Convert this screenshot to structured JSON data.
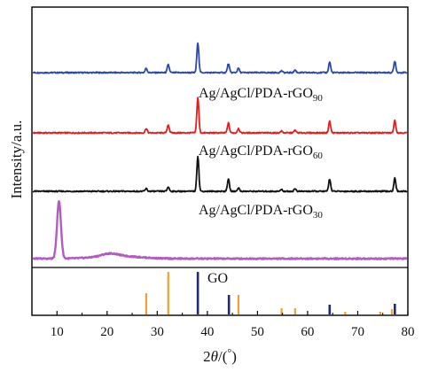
{
  "chart_data": {
    "type": "line",
    "xlabel_parts": {
      "pre": "2",
      "theta": "θ",
      "post": "/(",
      "unit": "°",
      "close": ")"
    },
    "ylabel": "Intensity/a.u.",
    "xlim": [
      5,
      80
    ],
    "xticks": [
      10,
      20,
      30,
      40,
      50,
      60,
      70,
      80
    ],
    "grid": false,
    "series": [
      {
        "label_main": "Ag/AgCl/PDA-rGO",
        "label_sub": "90",
        "color": "#2b4aa8",
        "baseline": 79,
        "peaks": [
          [
            27.8,
            5
          ],
          [
            32.2,
            9
          ],
          [
            38.1,
            34
          ],
          [
            44.2,
            10
          ],
          [
            46.2,
            5
          ],
          [
            54.8,
            2
          ],
          [
            57.5,
            3
          ],
          [
            64.4,
            12
          ],
          [
            77.4,
            13
          ]
        ]
      },
      {
        "label_main": "Ag/AgCl/PDA-rGO",
        "label_sub": "60",
        "color": "#e02020",
        "baseline": 79,
        "peaks": [
          [
            27.8,
            5
          ],
          [
            32.2,
            9
          ],
          [
            38.1,
            40
          ],
          [
            44.2,
            11
          ],
          [
            46.2,
            5
          ],
          [
            54.8,
            2
          ],
          [
            57.5,
            3
          ],
          [
            64.4,
            13
          ],
          [
            77.4,
            14
          ]
        ]
      },
      {
        "label_main": "Ag/AgCl/PDA-rGO",
        "label_sub": "30",
        "color": "#111111",
        "baseline": 79,
        "peaks": [
          [
            27.8,
            3
          ],
          [
            32.2,
            5
          ],
          [
            38.1,
            40
          ],
          [
            44.2,
            14
          ],
          [
            46.2,
            4
          ],
          [
            54.8,
            2
          ],
          [
            57.5,
            3
          ],
          [
            64.4,
            14
          ],
          [
            77.4,
            15
          ]
        ]
      },
      {
        "label_main": "GO",
        "label_sub": "",
        "color": "#b05cc0",
        "baseline": 3,
        "peaks": [
          [
            10.4,
            65
          ],
          [
            20.5,
            3
          ]
        ]
      }
    ],
    "reference_lines": {
      "orange": {
        "color": "#f0a030",
        "positions": [
          27.8,
          32.2,
          46.2,
          54.8,
          57.5,
          67.5,
          74.5,
          76.8
        ],
        "heights": [
          24,
          48,
          22,
          7,
          7,
          3,
          3,
          6
        ]
      },
      "navy": {
        "color": "#1f2a70",
        "positions": [
          38.1,
          44.3,
          64.4,
          77.4
        ],
        "heights": [
          48,
          22,
          11,
          12
        ]
      }
    }
  }
}
